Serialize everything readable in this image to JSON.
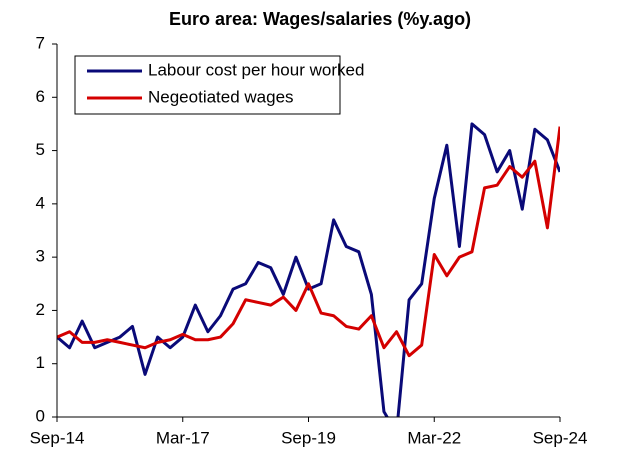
{
  "chart_data": {
    "type": "line",
    "title": "Euro area: Wages/salaries (%y.ago)",
    "categories": [
      "Sep-14",
      null,
      null,
      null,
      null,
      null,
      null,
      null,
      null,
      null,
      "Mar-17",
      null,
      null,
      null,
      null,
      null,
      null,
      null,
      null,
      null,
      "Sep-19",
      null,
      null,
      null,
      null,
      null,
      null,
      null,
      null,
      null,
      "Mar-22",
      null,
      null,
      null,
      null,
      null,
      null,
      null,
      null,
      null,
      "Sep-24"
    ],
    "series": [
      {
        "name": "Labour cost per hour worked",
        "color": "#0a0a78",
        "values": [
          1.5,
          1.3,
          1.8,
          1.3,
          1.4,
          1.5,
          1.7,
          0.8,
          1.5,
          1.3,
          1.5,
          2.1,
          1.6,
          1.9,
          2.4,
          2.5,
          2.9,
          2.8,
          2.3,
          3.0,
          2.4,
          2.5,
          3.7,
          3.2,
          3.1,
          2.3,
          0.1,
          -0.3,
          2.2,
          2.5,
          4.1,
          5.1,
          3.2,
          5.5,
          5.3,
          4.6,
          5.0,
          3.9,
          5.4,
          5.2,
          4.6
        ]
      },
      {
        "name": "Negeotiated wages",
        "color": "#d40000",
        "values": [
          1.5,
          1.6,
          1.4,
          1.4,
          1.45,
          1.4,
          1.35,
          1.3,
          1.4,
          1.45,
          1.55,
          1.45,
          1.45,
          1.5,
          1.75,
          2.2,
          2.15,
          2.1,
          2.25,
          2.0,
          2.5,
          1.95,
          1.9,
          1.7,
          1.65,
          1.9,
          1.3,
          1.6,
          1.15,
          1.35,
          3.05,
          2.65,
          3.0,
          3.1,
          4.3,
          4.35,
          4.7,
          4.5,
          4.8,
          3.55,
          5.45
        ]
      }
    ],
    "ylim": [
      0,
      7
    ],
    "yticks": [
      0,
      1,
      2,
      3,
      4,
      5,
      6,
      7
    ],
    "legend": "upper left"
  }
}
